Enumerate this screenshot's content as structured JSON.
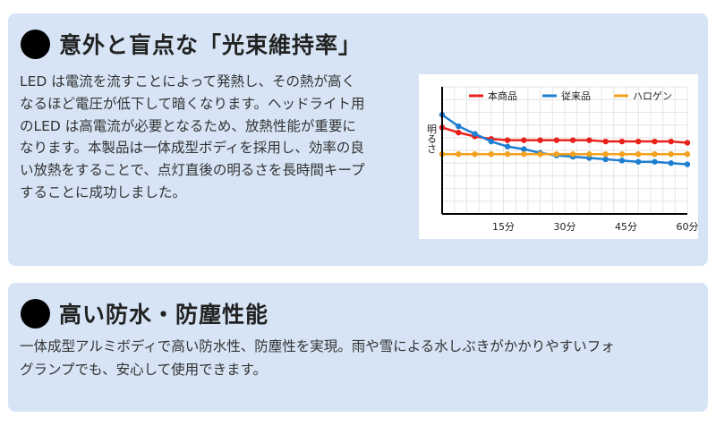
{
  "section1": {
    "title": "意外と盲点な「光束維持率」",
    "lines": [
      "LED は電流を流すことによって発熱し、その熱が高く",
      "なるほど電圧が低下して暗くなります。ヘッドライト用",
      "のLED は高電流が必要となるため、放熱性能が重要に",
      "なります。本製品は一体成型ボディを採用し、効率の良",
      "い放熱をすることで、点灯直後の明るさを長時間キープ",
      "することに成功しました。"
    ]
  },
  "section2": {
    "title": "高い防水・防塵性能",
    "lines": [
      "一体成型アルミボディで高い防水性、防塵性を実現。雨や雪による水しぶきがかかりやすいフォ",
      "グランプでも、安心して使用できます。"
    ]
  },
  "chart_data": {
    "type": "line",
    "ylabel": "明るさ",
    "xlabel": "",
    "xlim": [
      0,
      60
    ],
    "ylim": [
      0,
      100
    ],
    "x_ticks": [
      15,
      30,
      45,
      60
    ],
    "x_tick_labels": [
      "15分",
      "30分",
      "45分",
      "60分"
    ],
    "grid": true,
    "legend_position": "top",
    "series": [
      {
        "name": "本商品",
        "color": "#e8211a",
        "x": [
          0,
          4,
          8,
          12,
          16,
          20,
          24,
          28,
          32,
          36,
          40,
          44,
          48,
          52,
          56,
          60
        ],
        "y": [
          68,
          64,
          61,
          59,
          58,
          58,
          58,
          58,
          58,
          58,
          57,
          57,
          57,
          57,
          57,
          56
        ]
      },
      {
        "name": "従来品",
        "color": "#1e7fd0",
        "x": [
          0,
          4,
          8,
          12,
          16,
          20,
          24,
          28,
          32,
          36,
          40,
          44,
          48,
          52,
          56,
          60
        ],
        "y": [
          78,
          69,
          63,
          57,
          53,
          51,
          48,
          46,
          45,
          44,
          43,
          42,
          41,
          41,
          40,
          39
        ]
      },
      {
        "name": "ハロゲン",
        "color": "#f4a11e",
        "x": [
          0,
          4,
          8,
          12,
          16,
          20,
          24,
          28,
          32,
          36,
          40,
          44,
          48,
          52,
          56,
          60
        ],
        "y": [
          47,
          47,
          47,
          47,
          47,
          47,
          47,
          47,
          47,
          47,
          47,
          47,
          47,
          47,
          47,
          47
        ]
      }
    ]
  }
}
